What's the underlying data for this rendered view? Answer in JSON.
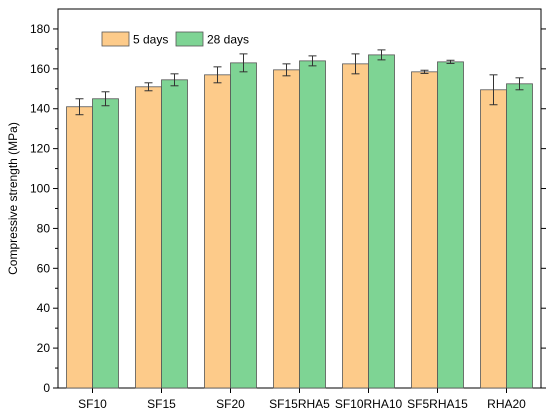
{
  "chart_data": {
    "type": "bar",
    "categories": [
      "SF10",
      "SF15",
      "SF20",
      "SF15RHA5",
      "SF10RHA10",
      "SF5RHA15",
      "RHA20"
    ],
    "series": [
      {
        "name": "5 days",
        "color": "#FDCB8A",
        "values": [
          141,
          151,
          157,
          159.5,
          162.5,
          158.5,
          149.5
        ],
        "errors": [
          4,
          2,
          4,
          3,
          5,
          0.8,
          7.5
        ]
      },
      {
        "name": "28 days",
        "color": "#7ED494",
        "values": [
          145,
          154.5,
          163,
          164,
          167,
          163.5,
          152.5
        ],
        "errors": [
          3.5,
          3,
          4.5,
          2.5,
          2.5,
          0.8,
          3
        ]
      }
    ],
    "xlabel": "",
    "ylabel": "Compressive strength (MPa)",
    "ylim": [
      0,
      190
    ],
    "yticks": [
      0,
      20,
      40,
      60,
      80,
      100,
      120,
      140,
      160,
      180
    ],
    "grid": false,
    "legend": "top-left"
  }
}
